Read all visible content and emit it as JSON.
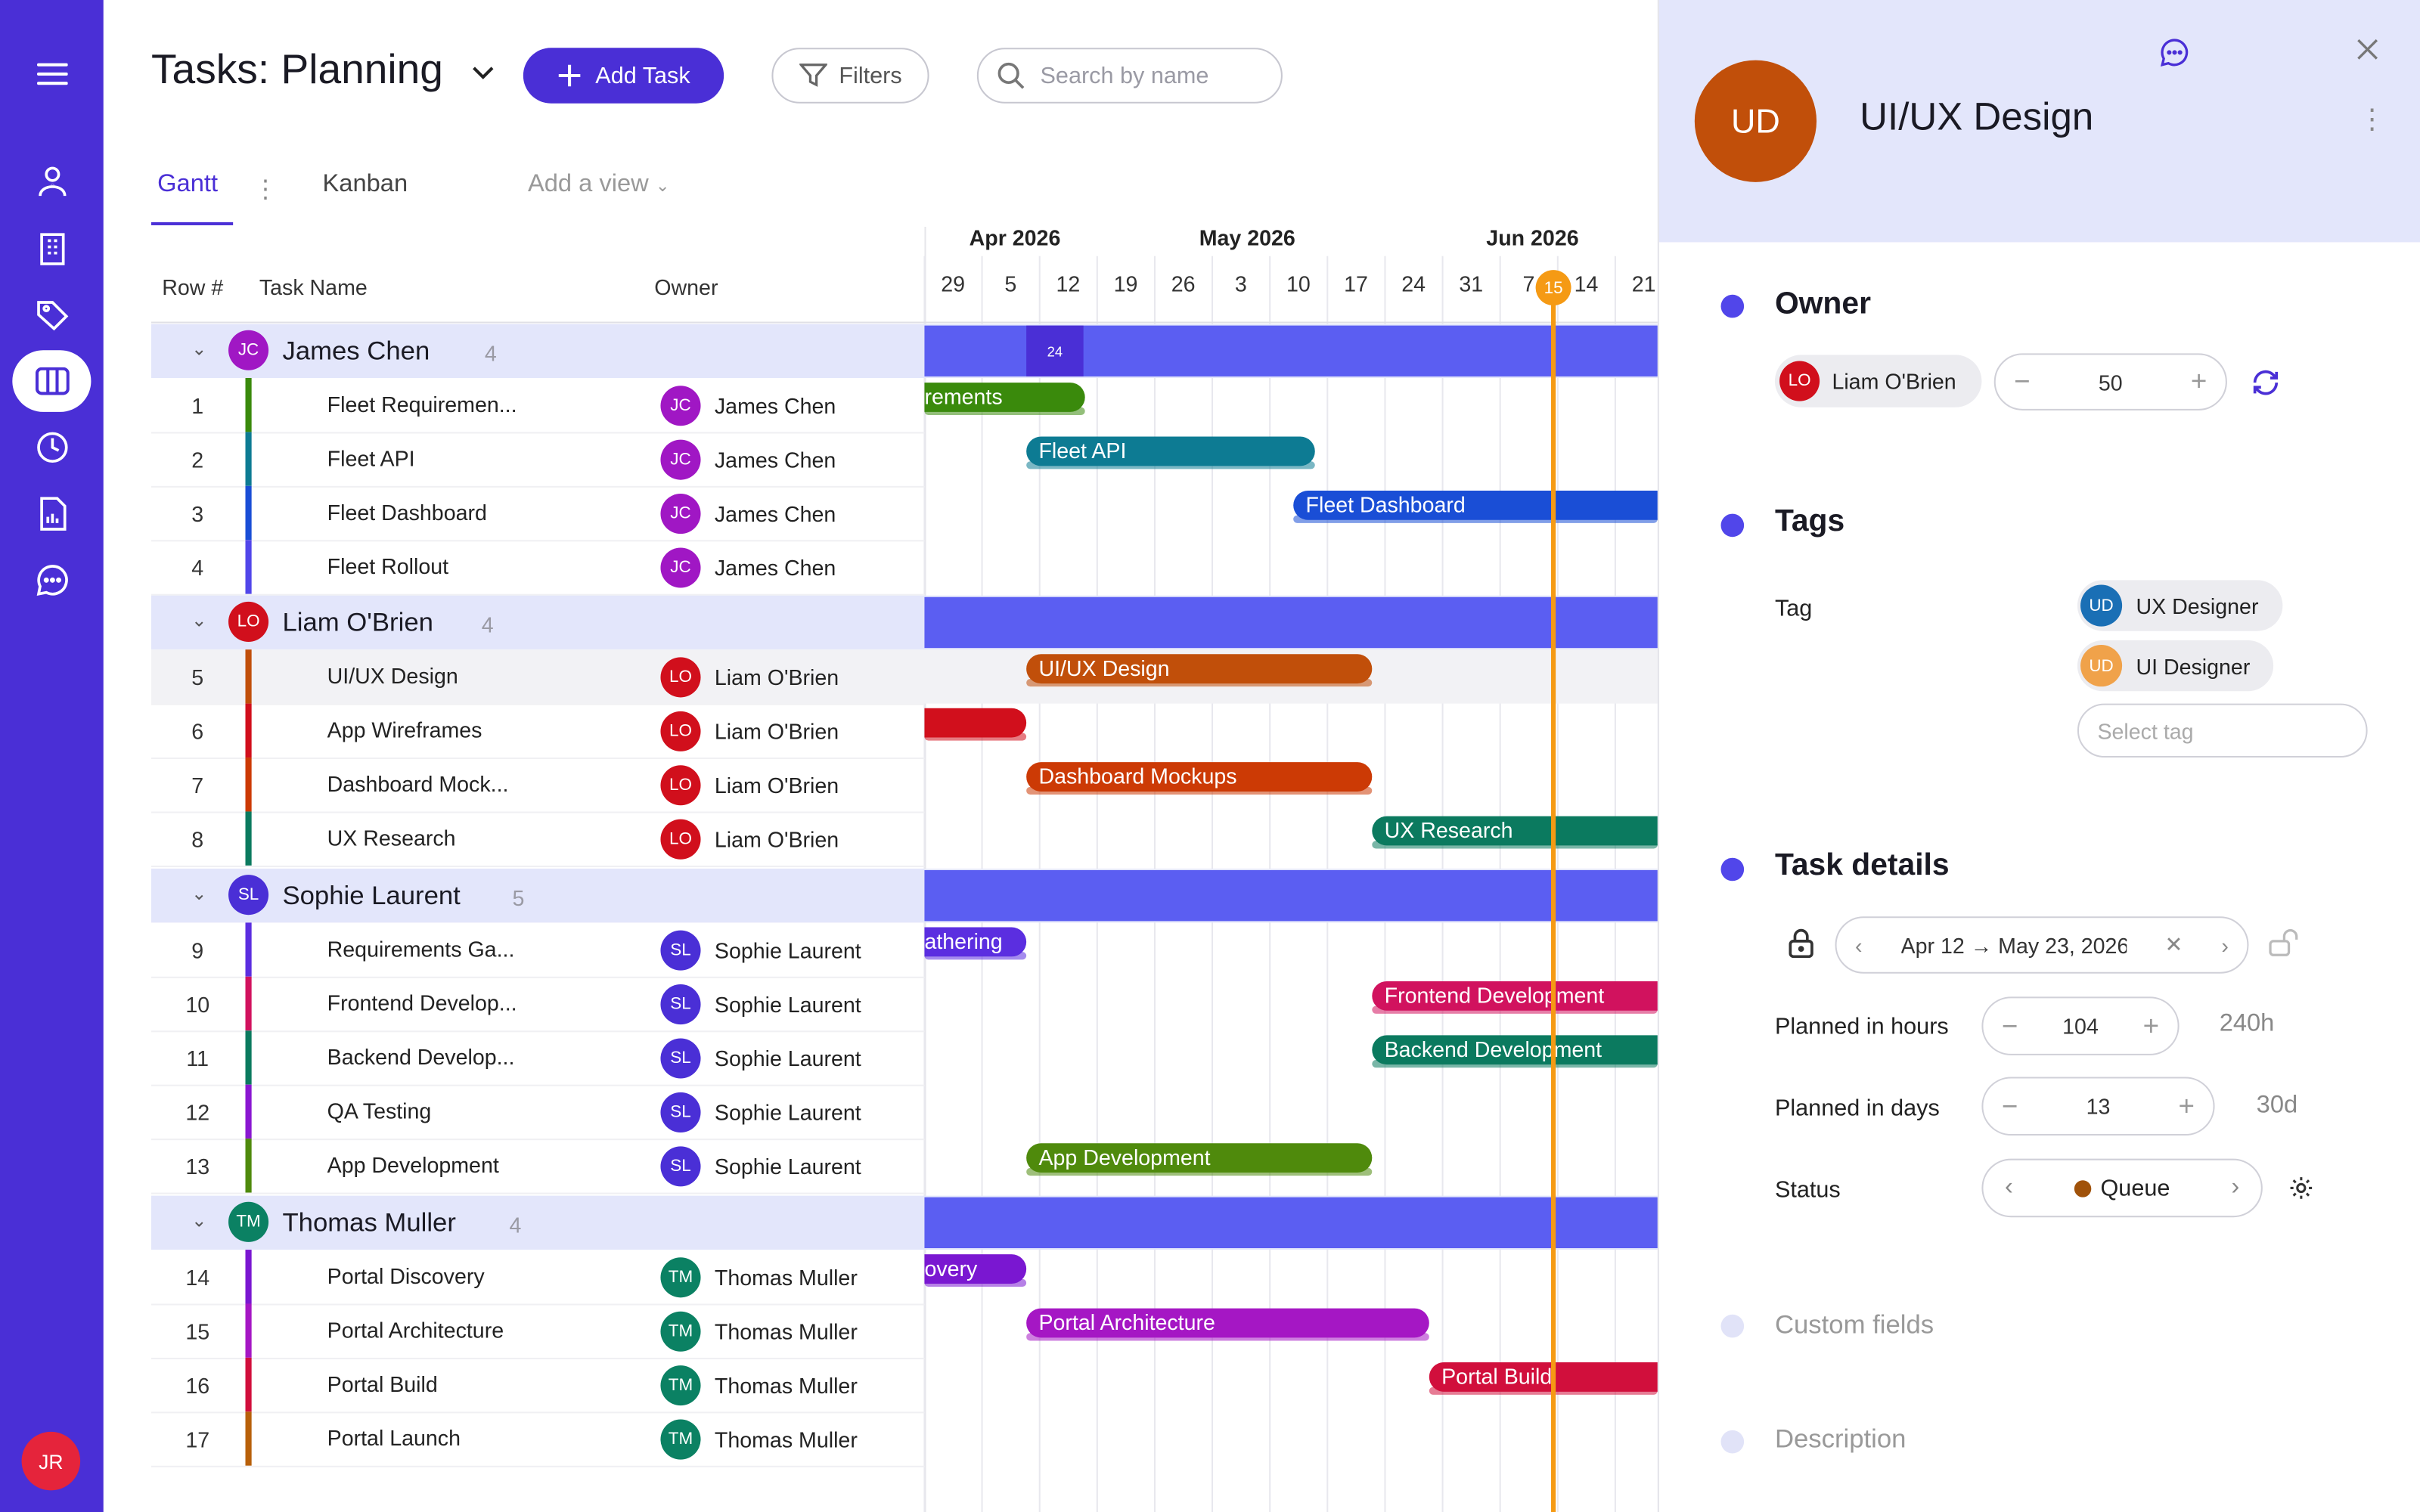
{
  "app": {
    "user_initials": "JR"
  },
  "colors": {
    "accent": "#4a2fd6",
    "today": "#f59a14",
    "group_bg": "#e3e6fb"
  },
  "header": {
    "title": "Tasks: Planning",
    "add_task": "Add Task",
    "filters": "Filters",
    "search_placeholder": "Search by name"
  },
  "tabs": {
    "gantt": "Gantt",
    "kanban": "Kanban",
    "add_view": "Add a view"
  },
  "table": {
    "col_row": "Row #",
    "col_task": "Task Name",
    "col_owner": "Owner"
  },
  "timeline": {
    "months": [
      "Apr 2026",
      "May 2026",
      "Jun 2026"
    ],
    "days": [
      "29",
      "5",
      "12",
      "19",
      "26",
      "3",
      "10",
      "17",
      "24",
      "31",
      "7",
      "14",
      "21"
    ],
    "today": "15",
    "marker_24": "24"
  },
  "groups": [
    {
      "name": "James Chen",
      "initials": "JC",
      "count": "4",
      "color": "#a017c4"
    },
    {
      "name": "Liam O'Brien",
      "initials": "LO",
      "count": "4",
      "color": "#d10f1c"
    },
    {
      "name": "Sophie Laurent",
      "initials": "SL",
      "count": "5",
      "color": "#4a2fd6"
    },
    {
      "name": "Thomas Muller",
      "initials": "TM",
      "count": "4",
      "color": "#0b8163"
    }
  ],
  "rows": [
    {
      "num": "1",
      "task": "Fleet Requiremen...",
      "owner": "James Chen",
      "initials": "JC",
      "bar": "rements",
      "color": "#3a8a0c"
    },
    {
      "num": "2",
      "task": "Fleet API",
      "owner": "James Chen",
      "initials": "JC",
      "bar": "Fleet API",
      "color": "#0d7b93"
    },
    {
      "num": "3",
      "task": "Fleet Dashboard",
      "owner": "James Chen",
      "initials": "JC",
      "bar": "Fleet Dashboard",
      "color": "#1a4ed6"
    },
    {
      "num": "4",
      "task": "Fleet Rollout",
      "owner": "James Chen",
      "initials": "JC",
      "bar": "",
      "color": "#5146ea"
    },
    {
      "num": "5",
      "task": "UI/UX Design",
      "owner": "Liam O'Brien",
      "initials": "LO",
      "bar": "UI/UX Design",
      "color": "#c14f0a"
    },
    {
      "num": "6",
      "task": "App Wireframes",
      "owner": "Liam O'Brien",
      "initials": "LO",
      "bar": "",
      "color": "#d10f1c"
    },
    {
      "num": "7",
      "task": "Dashboard Mock...",
      "owner": "Liam O'Brien",
      "initials": "LO",
      "bar": "Dashboard Mockups",
      "color": "#cc3a05"
    },
    {
      "num": "8",
      "task": "UX Research",
      "owner": "Liam O'Brien",
      "initials": "LO",
      "bar": "UX Research",
      "color": "#0b7a5f"
    },
    {
      "num": "9",
      "task": "Requirements Ga...",
      "owner": "Sophie Laurent",
      "initials": "SL",
      "bar": "athering",
      "color": "#5b2ee0"
    },
    {
      "num": "10",
      "task": "Frontend Develop...",
      "owner": "Sophie Laurent",
      "initials": "SL",
      "bar": "Frontend Development",
      "color": "#d1125e"
    },
    {
      "num": "11",
      "task": "Backend Develop...",
      "owner": "Sophie Laurent",
      "initials": "SL",
      "bar": "Backend Development",
      "color": "#0b7a5f"
    },
    {
      "num": "12",
      "task": "QA Testing",
      "owner": "Sophie Laurent",
      "initials": "SL",
      "bar": "",
      "color": "#8a17d1"
    },
    {
      "num": "13",
      "task": "App Development",
      "owner": "Sophie Laurent",
      "initials": "SL",
      "bar": "App Development",
      "color": "#4f8a0c"
    },
    {
      "num": "14",
      "task": "Portal Discovery",
      "owner": "Thomas Muller",
      "initials": "TM",
      "bar": "overy",
      "color": "#7a17d1"
    },
    {
      "num": "15",
      "task": "Portal Architecture",
      "owner": "Thomas Muller",
      "initials": "TM",
      "bar": "Portal Architecture",
      "color": "#a517c4"
    },
    {
      "num": "16",
      "task": "Portal Build",
      "owner": "Thomas Muller",
      "initials": "TM",
      "bar": "Portal Build",
      "color": "#d10f3c"
    },
    {
      "num": "17",
      "task": "Portal Launch",
      "owner": "Thomas Muller",
      "initials": "TM",
      "bar": "",
      "color": "#b8600a"
    }
  ],
  "panel": {
    "initials": "UD",
    "title": "UI/UX Design",
    "owner_section": "Owner",
    "owner_name": "Liam O'Brien",
    "owner_initials": "LO",
    "owner_value": "50",
    "tags_section": "Tags",
    "tag_label": "Tag",
    "tags": [
      {
        "name": "UX Designer",
        "initials": "UD",
        "color": "#1a6fb5"
      },
      {
        "name": "UI Designer",
        "initials": "UD",
        "color": "#f0a24a"
      }
    ],
    "select_tag_placeholder": "Select tag",
    "details_section": "Task details",
    "date_range": "Apr 12 → May 23, 2026",
    "planned_hours_label": "Planned in hours",
    "planned_hours": "104",
    "hours_total": "240h",
    "planned_days_label": "Planned in days",
    "planned_days": "13",
    "days_total": "30d",
    "status_label": "Status",
    "status_value": "Queue",
    "status_color": "#a0520a",
    "custom_fields": "Custom fields",
    "description": "Description"
  }
}
